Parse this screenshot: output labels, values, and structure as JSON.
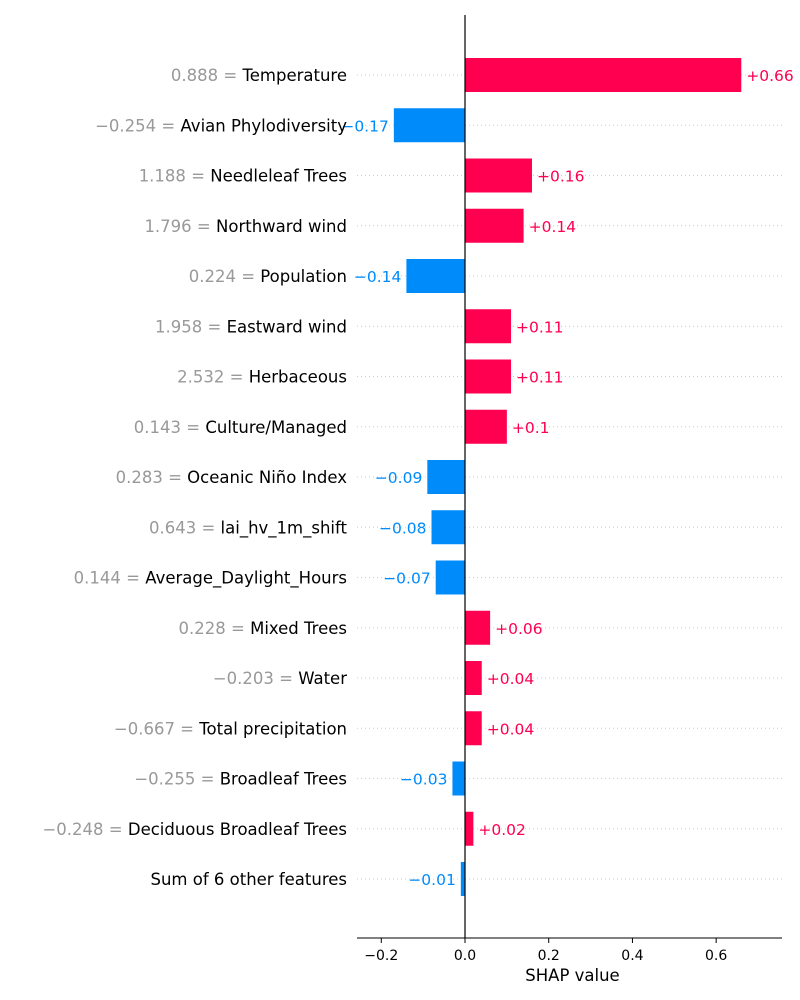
{
  "colors": {
    "positive": "#ff0051",
    "negative": "#008bfb",
    "value_text": "#999999",
    "grid": "#cccccc"
  },
  "chart_data": {
    "type": "bar",
    "orientation": "horizontal",
    "title": "",
    "xlabel": "SHAP value",
    "ylabel": "",
    "xlim": [
      -0.25,
      0.75
    ],
    "xticks": [
      -0.2,
      0.0,
      0.2,
      0.4,
      0.6
    ],
    "xtick_labels": [
      "−0.2",
      "0.0",
      "0.2",
      "0.4",
      "0.6"
    ],
    "grid": "dotted horizontal lines per row",
    "zero_line": true,
    "bars": [
      {
        "value_text": "0.888",
        "feature": "Temperature",
        "shap": 0.66,
        "label": "+0.66"
      },
      {
        "value_text": "−0.254",
        "feature": "Avian Phylodiversity",
        "shap": -0.17,
        "label": "−0.17"
      },
      {
        "value_text": "1.188",
        "feature": "Needleleaf Trees",
        "shap": 0.16,
        "label": "+0.16"
      },
      {
        "value_text": "1.796",
        "feature": "Northward wind",
        "shap": 0.14,
        "label": "+0.14"
      },
      {
        "value_text": "0.224",
        "feature": "Population",
        "shap": -0.14,
        "label": "−0.14"
      },
      {
        "value_text": "1.958",
        "feature": "Eastward wind",
        "shap": 0.11,
        "label": "+0.11"
      },
      {
        "value_text": "2.532",
        "feature": "Herbaceous",
        "shap": 0.11,
        "label": "+0.11"
      },
      {
        "value_text": "0.143",
        "feature": "Culture/Managed",
        "shap": 0.1,
        "label": "+0.1"
      },
      {
        "value_text": "0.283",
        "feature": "Oceanic Niño Index",
        "shap": -0.09,
        "label": "−0.09"
      },
      {
        "value_text": "0.643",
        "feature": "lai_hv_1m_shift",
        "shap": -0.08,
        "label": "−0.08"
      },
      {
        "value_text": "0.144",
        "feature": "Average_Daylight_Hours",
        "shap": -0.07,
        "label": "−0.07"
      },
      {
        "value_text": "0.228",
        "feature": "Mixed Trees",
        "shap": 0.06,
        "label": "+0.06"
      },
      {
        "value_text": "−0.203",
        "feature": "Water",
        "shap": 0.04,
        "label": "+0.04"
      },
      {
        "value_text": "−0.667",
        "feature": "Total precipitation",
        "shap": 0.04,
        "label": "+0.04"
      },
      {
        "value_text": "−0.255",
        "feature": "Broadleaf Trees",
        "shap": -0.03,
        "label": "−0.03"
      },
      {
        "value_text": "−0.248",
        "feature": "Deciduous Broadleaf Trees",
        "shap": 0.02,
        "label": "+0.02"
      },
      {
        "value_text": "",
        "feature": "Sum of 6 other features",
        "shap": -0.01,
        "label": "−0.01"
      }
    ]
  }
}
